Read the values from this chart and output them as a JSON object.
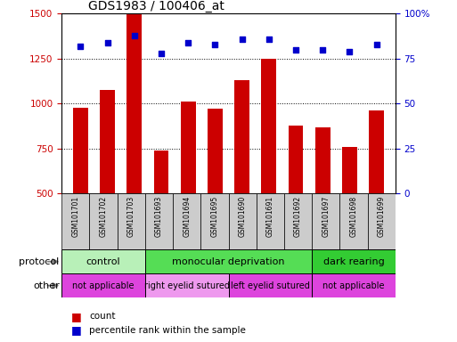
{
  "title": "GDS1983 / 100406_at",
  "samples": [
    "GSM101701",
    "GSM101702",
    "GSM101703",
    "GSM101693",
    "GSM101694",
    "GSM101695",
    "GSM101690",
    "GSM101691",
    "GSM101692",
    "GSM101697",
    "GSM101698",
    "GSM101699"
  ],
  "counts": [
    975,
    1075,
    1500,
    740,
    1010,
    970,
    1130,
    1250,
    875,
    865,
    760,
    960
  ],
  "percentile": [
    82,
    84,
    88,
    78,
    84,
    83,
    86,
    86,
    80,
    80,
    79,
    83
  ],
  "bar_color": "#cc0000",
  "dot_color": "#0000cc",
  "ylim_left": [
    500,
    1500
  ],
  "ylim_right": [
    0,
    100
  ],
  "yticks_left": [
    500,
    750,
    1000,
    1250,
    1500
  ],
  "yticks_right": [
    0,
    25,
    50,
    75,
    100
  ],
  "grid_lines": [
    750,
    1000,
    1250
  ],
  "protocol_groups": [
    {
      "label": "control",
      "start": 0,
      "end": 3,
      "color": "#b8f0b8"
    },
    {
      "label": "monocular deprivation",
      "start": 3,
      "end": 9,
      "color": "#55dd55"
    },
    {
      "label": "dark rearing",
      "start": 9,
      "end": 12,
      "color": "#33cc33"
    }
  ],
  "other_groups": [
    {
      "label": "not applicable",
      "start": 0,
      "end": 3,
      "color": "#dd44dd"
    },
    {
      "label": "right eyelid sutured",
      "start": 3,
      "end": 6,
      "color": "#ee99ee"
    },
    {
      "label": "left eyelid sutured",
      "start": 6,
      "end": 9,
      "color": "#dd44dd"
    },
    {
      "label": "not applicable",
      "start": 9,
      "end": 12,
      "color": "#dd44dd"
    }
  ],
  "legend_count_color": "#cc0000",
  "legend_dot_color": "#0000cc",
  "axis_left_color": "#cc0000",
  "axis_right_color": "#0000cc",
  "bg_color": "#ffffff",
  "plot_bg_color": "#ffffff",
  "tick_label_area_color": "#cccccc"
}
